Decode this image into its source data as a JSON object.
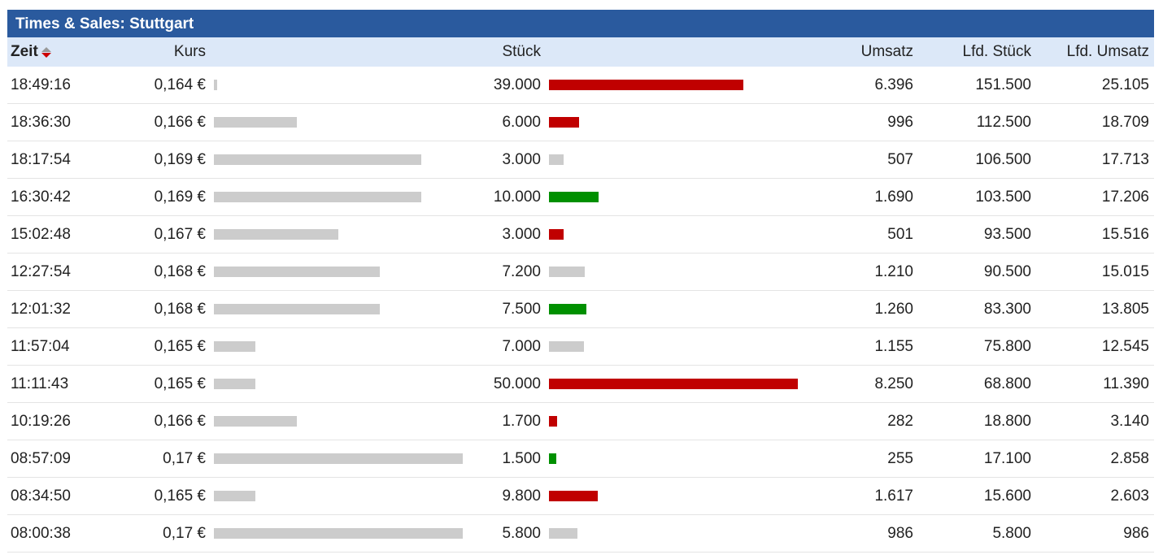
{
  "title": "Times & Sales: Stuttgart",
  "columns": {
    "zeit": "Zeit",
    "kurs": "Kurs",
    "stueck": "Stück",
    "umsatz": "Umsatz",
    "lfd_stueck": "Lfd. Stück",
    "lfd_umsatz": "Lfd. Umsatz"
  },
  "sort": {
    "column": "Zeit",
    "direction": "descending"
  },
  "colors": {
    "title_bg": "#2a5a9e",
    "header_bg": "#dce8f8",
    "price_bar": "#cccccc",
    "sell": "#c00000",
    "buy": "#009000",
    "neutral": "#cccccc"
  },
  "scale": {
    "kurs_min": 0.164,
    "kurs_max": 0.17,
    "stueck_max": 50000
  },
  "rows": [
    {
      "zeit": "18:49:16",
      "kurs": "0,164 €",
      "kurs_value": 0.164,
      "stueck": "39.000",
      "stueck_value": 39000,
      "side": "sell",
      "umsatz": "6.396",
      "lfd_stueck": "151.500",
      "lfd_umsatz": "25.105"
    },
    {
      "zeit": "18:36:30",
      "kurs": "0,166 €",
      "kurs_value": 0.166,
      "stueck": "6.000",
      "stueck_value": 6000,
      "side": "sell",
      "umsatz": "996",
      "lfd_stueck": "112.500",
      "lfd_umsatz": "18.709"
    },
    {
      "zeit": "18:17:54",
      "kurs": "0,169 €",
      "kurs_value": 0.169,
      "stueck": "3.000",
      "stueck_value": 3000,
      "side": "neutral",
      "umsatz": "507",
      "lfd_stueck": "106.500",
      "lfd_umsatz": "17.713"
    },
    {
      "zeit": "16:30:42",
      "kurs": "0,169 €",
      "kurs_value": 0.169,
      "stueck": "10.000",
      "stueck_value": 10000,
      "side": "buy",
      "umsatz": "1.690",
      "lfd_stueck": "103.500",
      "lfd_umsatz": "17.206"
    },
    {
      "zeit": "15:02:48",
      "kurs": "0,167 €",
      "kurs_value": 0.167,
      "stueck": "3.000",
      "stueck_value": 3000,
      "side": "sell",
      "umsatz": "501",
      "lfd_stueck": "93.500",
      "lfd_umsatz": "15.516"
    },
    {
      "zeit": "12:27:54",
      "kurs": "0,168 €",
      "kurs_value": 0.168,
      "stueck": "7.200",
      "stueck_value": 7200,
      "side": "neutral",
      "umsatz": "1.210",
      "lfd_stueck": "90.500",
      "lfd_umsatz": "15.015"
    },
    {
      "zeit": "12:01:32",
      "kurs": "0,168 €",
      "kurs_value": 0.168,
      "stueck": "7.500",
      "stueck_value": 7500,
      "side": "buy",
      "umsatz": "1.260",
      "lfd_stueck": "83.300",
      "lfd_umsatz": "13.805"
    },
    {
      "zeit": "11:57:04",
      "kurs": "0,165 €",
      "kurs_value": 0.165,
      "stueck": "7.000",
      "stueck_value": 7000,
      "side": "neutral",
      "umsatz": "1.155",
      "lfd_stueck": "75.800",
      "lfd_umsatz": "12.545"
    },
    {
      "zeit": "11:11:43",
      "kurs": "0,165 €",
      "kurs_value": 0.165,
      "stueck": "50.000",
      "stueck_value": 50000,
      "side": "sell",
      "umsatz": "8.250",
      "lfd_stueck": "68.800",
      "lfd_umsatz": "11.390"
    },
    {
      "zeit": "10:19:26",
      "kurs": "0,166 €",
      "kurs_value": 0.166,
      "stueck": "1.700",
      "stueck_value": 1700,
      "side": "sell",
      "umsatz": "282",
      "lfd_stueck": "18.800",
      "lfd_umsatz": "3.140"
    },
    {
      "zeit": "08:57:09",
      "kurs": "0,17 €",
      "kurs_value": 0.17,
      "stueck": "1.500",
      "stueck_value": 1500,
      "side": "buy",
      "umsatz": "255",
      "lfd_stueck": "17.100",
      "lfd_umsatz": "2.858"
    },
    {
      "zeit": "08:34:50",
      "kurs": "0,165 €",
      "kurs_value": 0.165,
      "stueck": "9.800",
      "stueck_value": 9800,
      "side": "sell",
      "umsatz": "1.617",
      "lfd_stueck": "15.600",
      "lfd_umsatz": "2.603"
    },
    {
      "zeit": "08:00:38",
      "kurs": "0,17 €",
      "kurs_value": 0.17,
      "stueck": "5.800",
      "stueck_value": 5800,
      "side": "neutral",
      "umsatz": "986",
      "lfd_stueck": "5.800",
      "lfd_umsatz": "986"
    }
  ]
}
